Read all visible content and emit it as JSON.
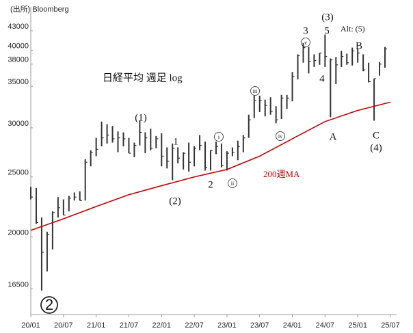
{
  "chart_data": {
    "type": "ohlc",
    "source": "(出所) Bloomberg",
    "title": "日経平均 週足 log",
    "log_scale": true,
    "ylim": [
      15000,
      47000
    ],
    "yticks": [
      16500,
      20000,
      25000,
      30000,
      35000,
      38000,
      40000,
      43000
    ],
    "xlim": [
      "20/01",
      "25/07"
    ],
    "xticks": [
      "20/01",
      "20/07",
      "21/01",
      "21/07",
      "22/01",
      "22/07",
      "23/01",
      "23/07",
      "24/01",
      "24/07",
      "25/01",
      "25/07"
    ],
    "ohlc": {
      "color": "#333333",
      "x": [
        "20/01",
        "20/02",
        "20/03",
        "20/04",
        "20/05",
        "20/06",
        "20/07",
        "20/08",
        "20/09",
        "20/10",
        "20/11",
        "20/12",
        "21/01",
        "21/02",
        "21/03",
        "21/04",
        "21/05",
        "21/06",
        "21/07",
        "21/08",
        "21/09",
        "21/10",
        "21/11",
        "21/12",
        "22/01",
        "22/02",
        "22/03",
        "22/04",
        "22/05",
        "22/06",
        "22/07",
        "22/08",
        "22/09",
        "22/10",
        "22/11",
        "22/12",
        "23/01",
        "23/02",
        "23/03",
        "23/04",
        "23/05",
        "23/06",
        "23/07",
        "23/08",
        "23/09",
        "23/10",
        "23/11",
        "23/12",
        "24/01",
        "24/02",
        "24/03",
        "24/04",
        "24/05",
        "24/06",
        "24/07",
        "24/08",
        "24/09",
        "24/10",
        "24/11",
        "24/12",
        "25/01",
        "25/02",
        "25/03",
        "25/04",
        "25/05",
        "25/06"
      ],
      "high": [
        24100,
        24000,
        21500,
        20400,
        22000,
        23200,
        23000,
        23300,
        23600,
        23700,
        26700,
        27600,
        28900,
        30700,
        30400,
        30200,
        29600,
        29500,
        28900,
        28400,
        30800,
        29500,
        29900,
        29100,
        29400,
        27900,
        28300,
        27900,
        27400,
        28400,
        28000,
        29200,
        28500,
        27600,
        28500,
        28300,
        27500,
        27900,
        28600,
        29200,
        31500,
        33800,
        33800,
        33300,
        33600,
        32500,
        33900,
        33900,
        36900,
        39400,
        41100,
        40500,
        39400,
        39600,
        42400,
        38800,
        39000,
        39900,
        39500,
        40400,
        40300,
        39400,
        38200,
        36000,
        38300,
        40500
      ],
      "low": [
        23000,
        21000,
        16400,
        17600,
        19100,
        21500,
        21700,
        22000,
        22900,
        22900,
        22900,
        26000,
        27000,
        28000,
        28300,
        28400,
        27400,
        28000,
        27300,
        26900,
        28100,
        27300,
        27600,
        27800,
        26000,
        25800,
        24700,
        26300,
        25700,
        25500,
        26000,
        27600,
        25600,
        25600,
        27200,
        25900,
        25600,
        27000,
        26600,
        27400,
        28900,
        31100,
        31800,
        31300,
        31500,
        30500,
        31000,
        32200,
        33100,
        35900,
        38200,
        36700,
        37600,
        37900,
        37600,
        31200,
        35300,
        37600,
        37900,
        37800,
        38200,
        37000,
        35500,
        30800,
        36400,
        37500
      ],
      "close": [
        23200,
        21100,
        18900,
        20200,
        21900,
        22300,
        21700,
        23100,
        23200,
        22900,
        26400,
        27400,
        27700,
        28900,
        29200,
        28800,
        28900,
        28800,
        27300,
        28100,
        29500,
        28900,
        27800,
        28800,
        27000,
        26500,
        27800,
        26800,
        27300,
        26400,
        27800,
        28100,
        25900,
        27600,
        28000,
        26100,
        27300,
        27400,
        28000,
        28900,
        30900,
        33200,
        33200,
        32600,
        31900,
        30900,
        33500,
        33500,
        36300,
        39200,
        40400,
        38400,
        38500,
        39600,
        39100,
        38600,
        37900,
        39100,
        38200,
        39900,
        39600,
        37200,
        35600,
        36000,
        38000,
        40200
      ]
    },
    "ma": {
      "label": "200週MA",
      "color": "#c00000",
      "x": [
        "20/01",
        "20/07",
        "21/01",
        "21/07",
        "22/01",
        "22/07",
        "23/01",
        "23/07",
        "24/01",
        "24/07",
        "25/01",
        "25/07"
      ],
      "values": [
        20500,
        21400,
        22400,
        23400,
        24200,
        25000,
        25700,
        27000,
        28800,
        30700,
        32000,
        33000
      ]
    },
    "annotations": [
      "(1)",
      "1",
      "2",
      "(2)",
      "i",
      "ii",
      "iii",
      "iv",
      "v",
      "3",
      "5",
      "(3)",
      "Alt: (5)",
      "4",
      "A",
      "B",
      "C",
      "(4)",
      "2"
    ]
  }
}
